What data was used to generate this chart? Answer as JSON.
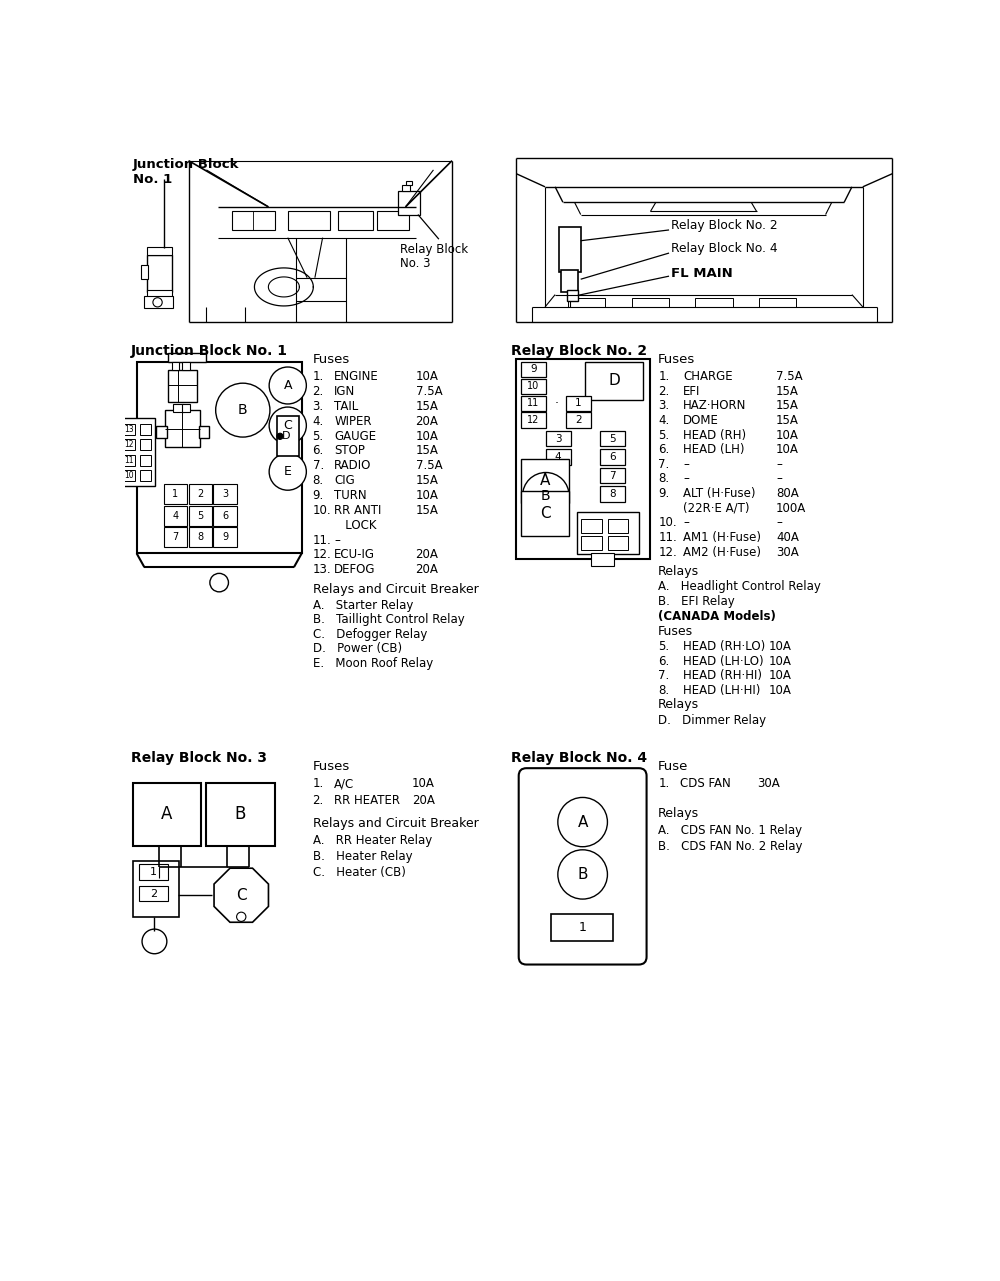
{
  "bg_color": "#ffffff",
  "jb1_title": "Junction Block No. 1",
  "jb1_fuses_title": "Fuses",
  "jb1_fuses": [
    [
      "1.",
      "ENGINE",
      "10A"
    ],
    [
      "2.",
      "IGN",
      "7.5A"
    ],
    [
      "3.",
      "TAIL",
      "15A"
    ],
    [
      "4.",
      "WIPER",
      "20A"
    ],
    [
      "5.",
      "GAUGE",
      "10A"
    ],
    [
      "6.",
      "STOP",
      "15A"
    ],
    [
      "7.",
      "RADIO",
      "7.5A"
    ],
    [
      "8.",
      "CIG",
      "15A"
    ],
    [
      "9.",
      "TURN",
      "10A"
    ],
    [
      "10.",
      "RR ANTI",
      "15A"
    ],
    [
      "",
      "   LOCK",
      ""
    ],
    [
      "11.",
      "–",
      ""
    ],
    [
      "12.",
      "ECU-IG",
      "20A"
    ],
    [
      "13.",
      "DEFOG",
      "20A"
    ]
  ],
  "jb1_relays_title": "Relays and Circuit Breaker",
  "jb1_relays": [
    "A.   Starter Relay",
    "B.   Taillight Control Relay",
    "C.   Defogger Relay",
    "D.   Power (CB)",
    "E.   Moon Roof Relay"
  ],
  "rb2_title": "Relay Block No. 2",
  "rb2_fuses_title": "Fuses",
  "rb2_fuses": [
    [
      "1.",
      "CHARGE",
      "7.5A"
    ],
    [
      "2.",
      "EFI",
      "15A"
    ],
    [
      "3.",
      "HAZ·HORN",
      "15A"
    ],
    [
      "4.",
      "DOME",
      "15A"
    ],
    [
      "5.",
      "HEAD (RH)",
      "10A"
    ],
    [
      "6.",
      "HEAD (LH)",
      "10A"
    ],
    [
      "7.",
      "–",
      "–"
    ],
    [
      "8.",
      "–",
      "–"
    ],
    [
      "9.",
      "ALT (H·Fuse)",
      "80A"
    ],
    [
      "",
      "(22R·E A/T)",
      "100A"
    ],
    [
      "10.",
      "–",
      "–"
    ],
    [
      "11.",
      "AM1 (H·Fuse)",
      "40A"
    ],
    [
      "12.",
      "AM2 (H·Fuse)",
      "30A"
    ]
  ],
  "rb2_relays_title": "Relays",
  "rb2_relays_A": "A.   Headlight Control Relay",
  "rb2_relays_B": "B.   EFI Relay",
  "rb2_canada": "(CANADA Models)",
  "rb2_fuses2_title": "Fuses",
  "rb2_fuses2": [
    [
      "5.",
      "HEAD (RH·LO)",
      "10A"
    ],
    [
      "6.",
      "HEAD (LH·LO)",
      "10A"
    ],
    [
      "7.",
      "HEAD (RH·HI)",
      "10A"
    ],
    [
      "8.",
      "HEAD (LH·HI)",
      "10A"
    ]
  ],
  "rb2_relays2_title": "Relays",
  "rb2_relays2_D": "D.   Dimmer Relay",
  "rb3_title": "Relay Block No. 3",
  "rb3_fuses_title": "Fuses",
  "rb3_fuses": [
    [
      "1.",
      "A/C",
      "10A"
    ],
    [
      "2.",
      "RR HEATER",
      "20A"
    ]
  ],
  "rb3_relays_title": "Relays and Circuit Breaker",
  "rb3_relays": [
    "A.   RR Heater Relay",
    "B.   Heater Relay",
    "C.   Heater (CB)"
  ],
  "rb4_title": "Relay Block No. 4",
  "rb4_fuse_title": "Fuse",
  "rb4_fuses": [
    [
      "1.",
      "CDS FAN",
      "30A"
    ]
  ],
  "rb4_relays_title": "Relays",
  "rb4_relays": [
    "A.   CDS FAN No. 1 Relay",
    "B.   CDS FAN No. 2 Relay"
  ],
  "top_left_label1": "Junction Block",
  "top_left_label2": "No. 1",
  "top_right_label1": "Relay Block No. 2",
  "top_right_label2": "Relay Block No. 4",
  "top_right_label3": "FL MAIN",
  "top_rb3_label1": "Relay Block",
  "top_rb3_label2": "No. 3"
}
